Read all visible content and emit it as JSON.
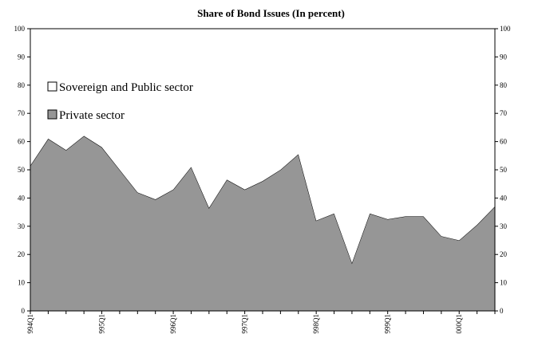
{
  "chart_data": {
    "type": "area",
    "title": "Share of Bond Issues (In percent)",
    "xlabel": "",
    "ylabel": "",
    "ylim": [
      0,
      100
    ],
    "y_ticks": [
      0,
      10,
      20,
      30,
      40,
      50,
      60,
      70,
      80,
      90,
      100
    ],
    "grid": false,
    "legend_position": "upper-left",
    "x": [
      "1994Q1",
      "1994Q2",
      "1994Q3",
      "1994Q4",
      "1995Q1",
      "1995Q2",
      "1995Q3",
      "1995Q4",
      "1996Q1",
      "1996Q2",
      "1996Q3",
      "1996Q4",
      "1997Q1",
      "1997Q2",
      "1997Q3",
      "1997Q4",
      "1998Q1",
      "1998Q2",
      "1998Q3",
      "1998Q4",
      "1999Q1",
      "1999Q2",
      "1999Q3",
      "1999Q4",
      "2000Q1",
      "2000Q2",
      "2000Q3"
    ],
    "x_tick_labels": [
      {
        "index": 0,
        "label": "994Q1"
      },
      {
        "index": 4,
        "label": "995Q1"
      },
      {
        "index": 8,
        "label": "996Q1"
      },
      {
        "index": 12,
        "label": "997Q1"
      },
      {
        "index": 16,
        "label": "998Q1"
      },
      {
        "index": 20,
        "label": "999Q1"
      },
      {
        "index": 24,
        "label": "000Q1"
      }
    ],
    "series": [
      {
        "name": "Sovereign and Public sector",
        "color": "#ffffff",
        "values": [
          48.5,
          39,
          43,
          38,
          42,
          50,
          58,
          60.5,
          57,
          49,
          63.5,
          53.5,
          57,
          54,
          50,
          44.5,
          68,
          65.5,
          83,
          65.5,
          67.5,
          66.5,
          66.5,
          73.5,
          75,
          69.5,
          63
        ]
      },
      {
        "name": "Private sector",
        "color": "#969696",
        "values": [
          51.5,
          61,
          57,
          62,
          58,
          50,
          42,
          39.5,
          43,
          51,
          36.5,
          46.5,
          43,
          46,
          50,
          55.5,
          32,
          34.5,
          17,
          34.5,
          32.5,
          33.5,
          33.5,
          26.5,
          25,
          30.5,
          37
        ]
      }
    ]
  }
}
